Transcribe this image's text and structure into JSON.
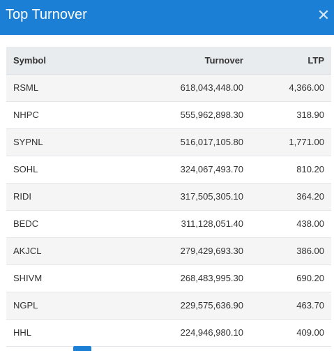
{
  "modal": {
    "title": "Top Turnover"
  },
  "table": {
    "headers": {
      "symbol": "Symbol",
      "turnover": "Turnover",
      "ltp": "LTP"
    },
    "rows": [
      {
        "symbol": "RSML",
        "turnover": "618,043,448.00",
        "ltp": "4,366.00"
      },
      {
        "symbol": "NHPC",
        "turnover": "555,962,898.30",
        "ltp": "318.90"
      },
      {
        "symbol": "SYPNL",
        "turnover": "516,017,105.80",
        "ltp": "1,771.00"
      },
      {
        "symbol": "SOHL",
        "turnover": "324,067,493.70",
        "ltp": "810.20"
      },
      {
        "symbol": "RIDI",
        "turnover": "317,505,305.10",
        "ltp": "364.20"
      },
      {
        "symbol": "BEDC",
        "turnover": "311,128,051.40",
        "ltp": "438.00"
      },
      {
        "symbol": "AKJCL",
        "turnover": "279,429,693.30",
        "ltp": "386.00"
      },
      {
        "symbol": "SHIVM",
        "turnover": "268,483,995.30",
        "ltp": "690.20"
      },
      {
        "symbol": "NGPL",
        "turnover": "229,575,636.90",
        "ltp": "463.70"
      },
      {
        "symbol": "HHL",
        "turnover": "224,946,980.10",
        "ltp": "409.00"
      }
    ]
  },
  "colors": {
    "header_bg": "#1c7fd6",
    "row_alt_bg": "#f5f5f5",
    "table_head_bg": "#e9ecef"
  },
  "icons": {
    "close": "close-icon"
  }
}
